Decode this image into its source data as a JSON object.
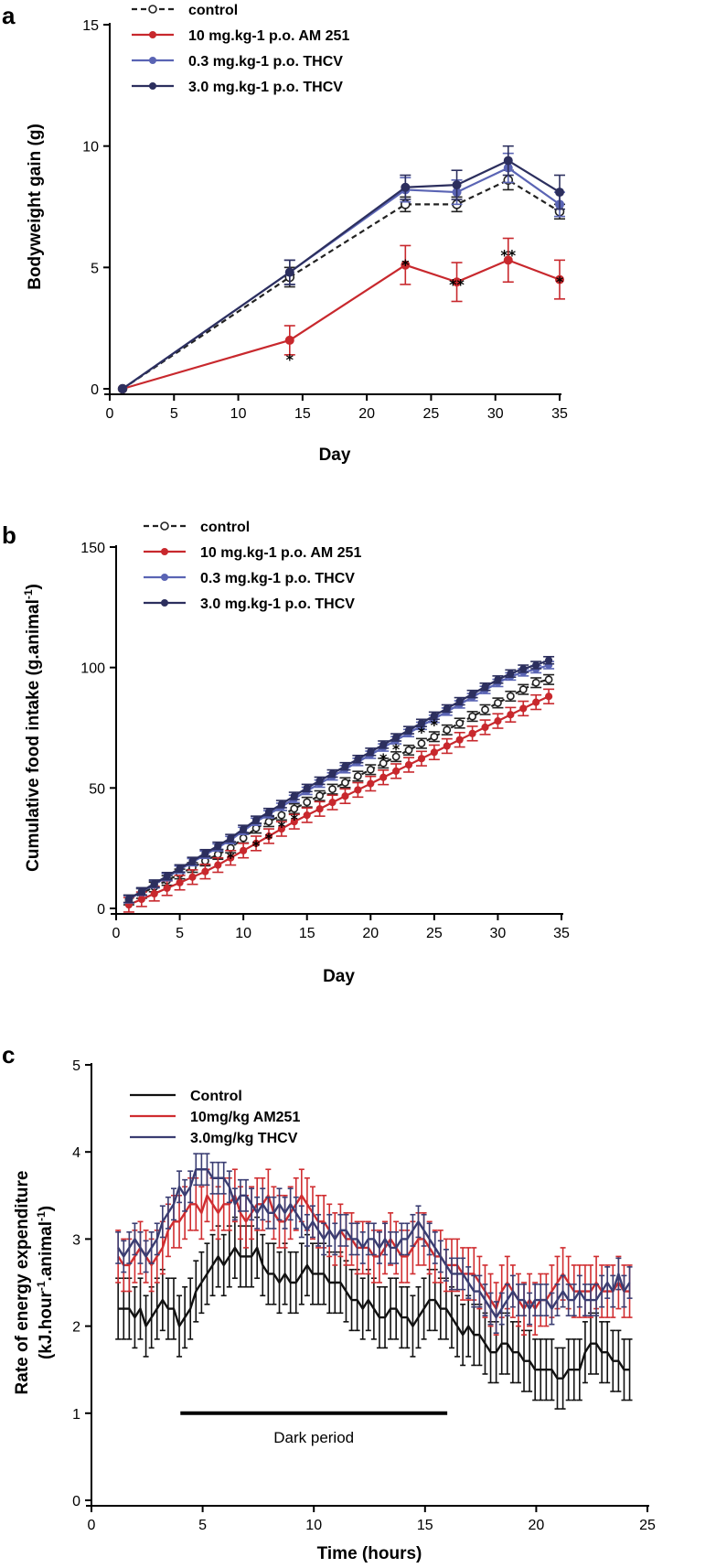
{
  "chart_data": [
    {
      "panel": "a",
      "type": "line",
      "xlabel": "Day",
      "ylabel": "Bodyweight gain (g)",
      "xlim": [
        0,
        35
      ],
      "ylim": [
        0,
        15
      ],
      "xticks": [
        0,
        5,
        10,
        15,
        20,
        25,
        30,
        35
      ],
      "yticks": [
        0,
        5,
        10,
        15
      ],
      "x": [
        1,
        14,
        23,
        27,
        31,
        35
      ],
      "series": [
        {
          "name": "control",
          "color": "#222222",
          "dash": true,
          "marker": "open",
          "values": [
            0,
            4.6,
            7.6,
            7.6,
            8.6,
            7.3
          ],
          "err": [
            0,
            0.4,
            0.3,
            0.3,
            0.4,
            0.3
          ]
        },
        {
          "name": "10 mg.kg-1 p.o. AM 251",
          "color": "#c8282d",
          "dash": false,
          "marker": "filled",
          "values": [
            0,
            2.0,
            5.1,
            4.4,
            5.3,
            4.5
          ],
          "err": [
            0,
            0.6,
            0.8,
            0.8,
            0.9,
            0.8
          ]
        },
        {
          "name": "0.3 mg.kg-1 p.o. THCV",
          "color": "#5a64b4",
          "dash": false,
          "marker": "filled",
          "values": [
            0,
            4.8,
            8.2,
            8.1,
            9.1,
            7.6
          ],
          "err": [
            0,
            0.5,
            0.5,
            0.5,
            0.6,
            0.5
          ]
        },
        {
          "name": "3.0 mg.kg-1 p.o. THCV",
          "color": "#2c2f5e",
          "dash": false,
          "marker": "filled",
          "values": [
            0,
            4.8,
            8.3,
            8.4,
            9.4,
            8.1
          ],
          "err": [
            0,
            0.5,
            0.5,
            0.6,
            0.6,
            0.7
          ]
        }
      ],
      "annotations": [
        {
          "text": "*",
          "x": 14,
          "y": 1.3
        },
        {
          "text": "*",
          "x": 23,
          "y": 5.2
        },
        {
          "text": "**",
          "x": 27,
          "y": 4.4
        },
        {
          "text": "**",
          "x": 31,
          "y": 5.6
        },
        {
          "text": "*",
          "x": 35,
          "y": 4.5
        }
      ]
    },
    {
      "panel": "b",
      "type": "line",
      "xlabel": "Day",
      "ylabel": "Cumulative food intake (g.animal-1)",
      "xlim": [
        0,
        35
      ],
      "ylim": [
        0,
        150
      ],
      "xticks": [
        0,
        5,
        10,
        15,
        20,
        25,
        30,
        35
      ],
      "yticks": [
        0,
        50,
        100,
        150
      ],
      "x": [
        1,
        2,
        3,
        4,
        5,
        6,
        7,
        8,
        9,
        10,
        11,
        12,
        13,
        14,
        15,
        16,
        17,
        18,
        19,
        20,
        21,
        22,
        23,
        24,
        25,
        26,
        27,
        28,
        29,
        30,
        31,
        32,
        33,
        34
      ],
      "series": [
        {
          "name": "control",
          "color": "#222222",
          "dash": true,
          "marker": "open",
          "values": [
            3.5,
            6.2,
            8.9,
            11.6,
            14.3,
            17.0,
            19.7,
            22.4,
            25.1,
            29.2,
            33.3,
            36.0,
            38.7,
            41.4,
            44.1,
            46.8,
            49.5,
            52.2,
            54.9,
            57.6,
            60.3,
            63.0,
            65.7,
            68.5,
            71.3,
            74.1,
            76.9,
            79.7,
            82.5,
            85.3,
            88.1,
            90.9,
            93.7,
            95.0
          ],
          "err": 2
        },
        {
          "name": "10 mg.kg-1 p.o. AM 251",
          "color": "#c8282d",
          "dash": false,
          "marker": "filled",
          "values": [
            1.5,
            3.8,
            6.1,
            8.4,
            10.7,
            13.0,
            15.3,
            18.0,
            21.0,
            24.0,
            27.0,
            30.0,
            33.0,
            36.0,
            38.7,
            41.3,
            44.0,
            46.6,
            49.2,
            51.8,
            54.4,
            57.0,
            59.6,
            62.2,
            64.8,
            67.4,
            70.0,
            72.6,
            75.2,
            77.8,
            80.4,
            83.0,
            85.6,
            88.0
          ],
          "err": 3
        },
        {
          "name": "0.3 mg.kg-1 p.o. THCV",
          "color": "#5a64b4",
          "dash": false,
          "marker": "filled",
          "values": [
            3.8,
            6.9,
            10.0,
            13.0,
            16.1,
            19.2,
            22.3,
            25.3,
            28.4,
            32.2,
            36.0,
            39.1,
            42.2,
            45.5,
            48.8,
            51.8,
            54.8,
            57.8,
            60.8,
            63.8,
            66.8,
            69.8,
            72.8,
            75.8,
            78.7,
            81.7,
            84.7,
            87.7,
            90.7,
            93.6,
            96.3,
            98.0,
            99.3,
            101.0
          ],
          "err": 1.5
        },
        {
          "name": "3.0 mg.kg-1 p.o. THCV",
          "color": "#2c2f5e",
          "dash": false,
          "marker": "filled",
          "values": [
            4.0,
            7.1,
            10.3,
            13.4,
            16.6,
            19.7,
            22.9,
            26.0,
            29.2,
            33.0,
            36.8,
            40.0,
            43.3,
            46.7,
            50.0,
            53.0,
            56.0,
            59.0,
            62.0,
            65.0,
            68.0,
            71.0,
            74.0,
            77.0,
            80.0,
            83.0,
            86.0,
            89.0,
            92.0,
            95.0,
            97.5,
            99.5,
            101.0,
            103.0
          ],
          "err": 1.5
        }
      ],
      "annotations": [
        {
          "text": "*",
          "x": 9,
          "y": 22
        },
        {
          "text": "*",
          "x": 11,
          "y": 27
        },
        {
          "text": "*",
          "x": 12,
          "y": 30
        },
        {
          "text": "*",
          "x": 13,
          "y": 35
        },
        {
          "text": "*",
          "x": 14,
          "y": 38
        },
        {
          "text": "*",
          "x": 21,
          "y": 63
        },
        {
          "text": "*",
          "x": 22,
          "y": 67
        },
        {
          "text": "*",
          "x": 24,
          "y": 74
        },
        {
          "text": "*",
          "x": 25,
          "y": 77
        }
      ]
    },
    {
      "panel": "c",
      "type": "line",
      "xlabel": "Time (hours)",
      "ylabel": "Rate of energy expenditure",
      "ylabel2": "(kJ.hour-1.animal-1)",
      "xlim": [
        0,
        25
      ],
      "ylim": [
        0,
        5
      ],
      "xticks": [
        0,
        5,
        10,
        15,
        20,
        25
      ],
      "yticks": [
        0,
        1,
        2,
        3,
        4,
        5
      ],
      "x_start": 1.2,
      "x_step": 0.25,
      "series": [
        {
          "name": "Control",
          "color": "#111111",
          "err": 0.35,
          "values": [
            2.2,
            2.2,
            2.2,
            2.1,
            2.2,
            2.0,
            2.1,
            2.2,
            2.3,
            2.2,
            2.2,
            2.0,
            2.1,
            2.2,
            2.4,
            2.5,
            2.6,
            2.7,
            2.8,
            2.7,
            2.8,
            2.9,
            2.8,
            2.8,
            2.8,
            2.9,
            2.7,
            2.6,
            2.6,
            2.5,
            2.6,
            2.5,
            2.5,
            2.6,
            2.7,
            2.6,
            2.6,
            2.6,
            2.5,
            2.5,
            2.5,
            2.4,
            2.3,
            2.3,
            2.2,
            2.3,
            2.2,
            2.1,
            2.1,
            2.2,
            2.2,
            2.1,
            2.1,
            2.0,
            2.1,
            2.2,
            2.3,
            2.3,
            2.2,
            2.2,
            2.1,
            2.0,
            1.9,
            2.0,
            1.9,
            1.9,
            1.8,
            1.7,
            1.7,
            1.8,
            1.8,
            1.7,
            1.7,
            1.6,
            1.6,
            1.5,
            1.5,
            1.5,
            1.5,
            1.4,
            1.4,
            1.5,
            1.5,
            1.5,
            1.7,
            1.8,
            1.8,
            1.7,
            1.7,
            1.6,
            1.6,
            1.5,
            1.5
          ]
        },
        {
          "name": "10mg/kg AM251",
          "color": "#d02d30",
          "err": 0.3,
          "values": [
            2.8,
            2.7,
            2.7,
            2.8,
            2.9,
            2.8,
            2.7,
            2.8,
            2.9,
            3.1,
            3.2,
            3.2,
            3.3,
            3.4,
            3.4,
            3.3,
            3.5,
            3.4,
            3.3,
            3.4,
            3.4,
            3.5,
            3.3,
            3.2,
            3.3,
            3.4,
            3.4,
            3.5,
            3.3,
            3.2,
            3.2,
            3.3,
            3.4,
            3.5,
            3.4,
            3.3,
            3.2,
            3.2,
            3.1,
            3.0,
            3.1,
            3.0,
            3.0,
            2.9,
            2.9,
            2.9,
            2.8,
            2.8,
            2.9,
            3.0,
            2.9,
            2.8,
            2.8,
            2.9,
            3.0,
            3.0,
            2.9,
            2.8,
            2.8,
            2.7,
            2.7,
            2.7,
            2.6,
            2.6,
            2.6,
            2.5,
            2.4,
            2.3,
            2.2,
            2.4,
            2.5,
            2.4,
            2.3,
            2.2,
            2.3,
            2.2,
            2.3,
            2.3,
            2.4,
            2.5,
            2.6,
            2.5,
            2.4,
            2.4,
            2.4,
            2.4,
            2.5,
            2.4,
            2.4,
            2.4,
            2.5,
            2.4,
            2.4
          ]
        },
        {
          "name": "3.0mg/kg THCV",
          "color": "#3a3d72",
          "err": 0.18,
          "values": [
            2.9,
            2.8,
            2.9,
            3.0,
            2.9,
            2.8,
            2.9,
            3.0,
            3.2,
            3.3,
            3.4,
            3.6,
            3.5,
            3.6,
            3.8,
            3.8,
            3.8,
            3.7,
            3.7,
            3.7,
            3.6,
            3.4,
            3.5,
            3.5,
            3.4,
            3.3,
            3.4,
            3.3,
            3.3,
            3.4,
            3.3,
            3.4,
            3.3,
            3.2,
            3.1,
            3.2,
            3.1,
            3.0,
            3.1,
            3.0,
            3.1,
            3.1,
            3.0,
            3.0,
            2.9,
            3.0,
            3.0,
            2.9,
            3.0,
            2.9,
            2.9,
            3.0,
            3.0,
            3.1,
            3.2,
            3.1,
            3.0,
            2.9,
            2.8,
            2.7,
            2.6,
            2.6,
            2.6,
            2.5,
            2.4,
            2.4,
            2.3,
            2.2,
            2.1,
            2.2,
            2.3,
            2.4,
            2.3,
            2.3,
            2.2,
            2.3,
            2.3,
            2.3,
            2.2,
            2.3,
            2.4,
            2.3,
            2.3,
            2.4,
            2.3,
            2.3,
            2.3,
            2.4,
            2.5,
            2.4,
            2.6,
            2.4,
            2.5
          ]
        }
      ],
      "dark_period": {
        "label": "Dark period",
        "x0": 4,
        "x1": 16,
        "y": 1.0
      }
    }
  ]
}
